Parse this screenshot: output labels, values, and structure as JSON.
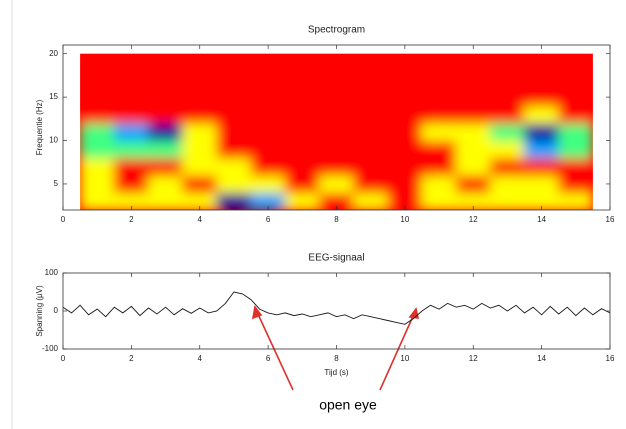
{
  "chart_data": [
    {
      "type": "heatmap",
      "title": "Spectrogram",
      "ylabel": "Frequentie (Hz)",
      "x": [
        1,
        2,
        3,
        4,
        5,
        6,
        7,
        8,
        9,
        10,
        11,
        12,
        13,
        14,
        15
      ],
      "y": [
        3,
        5,
        7,
        9,
        11,
        13,
        15,
        17,
        19
      ],
      "z": [
        [
          1,
          1,
          1,
          1,
          4,
          3,
          1,
          0,
          1,
          0,
          1,
          1,
          1,
          1,
          1
        ],
        [
          1,
          0,
          1,
          0,
          1,
          1,
          0,
          1,
          0,
          0,
          1,
          0,
          1,
          1,
          0
        ],
        [
          1,
          0,
          0,
          1,
          1,
          0,
          0,
          0,
          0,
          0,
          0,
          1,
          0,
          0,
          0
        ],
        [
          2,
          2,
          2,
          1,
          0,
          0,
          0,
          0,
          0,
          0,
          0,
          1,
          1,
          3,
          2
        ],
        [
          2,
          3,
          4,
          1,
          0,
          0,
          0,
          0,
          0,
          0,
          1,
          1,
          2,
          4,
          2
        ],
        [
          0,
          0,
          0,
          0,
          0,
          0,
          0,
          0,
          0,
          0,
          0,
          0,
          0,
          1,
          0
        ],
        [
          0,
          0,
          0,
          0,
          0,
          0,
          0,
          0,
          0,
          0,
          0,
          0,
          0,
          0,
          0
        ],
        [
          0,
          0,
          0,
          0,
          0,
          0,
          0,
          0,
          0,
          0,
          0,
          0,
          0,
          0,
          0
        ],
        [
          0,
          0,
          0,
          0,
          0,
          0,
          0,
          0,
          0,
          0,
          0,
          0,
          0,
          0,
          0
        ]
      ],
      "colorscale": [
        "#ff0000",
        "#ffff00",
        "#40ff80",
        "#00a0ff",
        "#0000a0"
      ],
      "xlim": [
        0,
        16
      ],
      "xticks": [
        0,
        2,
        4,
        6,
        8,
        10,
        12,
        14,
        16
      ],
      "ylim": [
        2,
        21
      ],
      "yticks": [
        5,
        10,
        15,
        20
      ]
    },
    {
      "type": "line",
      "title": "EEG-signaal",
      "xlabel": "Tijd (s)",
      "ylabel": "Spanning (µV)",
      "x": [
        0,
        0.25,
        0.5,
        0.75,
        1,
        1.25,
        1.5,
        1.75,
        2,
        2.25,
        2.5,
        2.75,
        3,
        3.25,
        3.5,
        3.75,
        4,
        4.25,
        4.5,
        4.75,
        5,
        5.25,
        5.5,
        5.75,
        6,
        6.25,
        6.5,
        6.75,
        7,
        7.25,
        7.5,
        7.75,
        8,
        8.25,
        8.5,
        8.75,
        9,
        9.25,
        9.5,
        9.75,
        10,
        10.25,
        10.5,
        10.75,
        11,
        11.25,
        11.5,
        11.75,
        12,
        12.25,
        12.5,
        12.75,
        13,
        13.25,
        13.5,
        13.75,
        14,
        14.25,
        14.5,
        14.75,
        15,
        15.25,
        15.5,
        15.75,
        16
      ],
      "y": [
        10,
        -5,
        15,
        -10,
        5,
        -15,
        10,
        -5,
        12,
        -12,
        8,
        -8,
        10,
        -10,
        6,
        -6,
        8,
        -5,
        0,
        20,
        50,
        45,
        30,
        5,
        -5,
        -10,
        -5,
        -12,
        -8,
        -15,
        -10,
        -5,
        -15,
        -10,
        -20,
        -10,
        -15,
        -20,
        -25,
        -30,
        -35,
        -20,
        0,
        15,
        5,
        20,
        10,
        15,
        5,
        20,
        8,
        15,
        0,
        15,
        -5,
        10,
        -10,
        12,
        -8,
        10,
        -12,
        8,
        -10,
        6,
        -5
      ],
      "color": "#1a1a1a",
      "xlim": [
        0,
        16
      ],
      "xticks": [
        0,
        2,
        4,
        6,
        8,
        10,
        12,
        14,
        16
      ],
      "ylim": [
        -100,
        100
      ],
      "yticks": [
        -100,
        0,
        100
      ],
      "annotation": "open eye"
    }
  ]
}
